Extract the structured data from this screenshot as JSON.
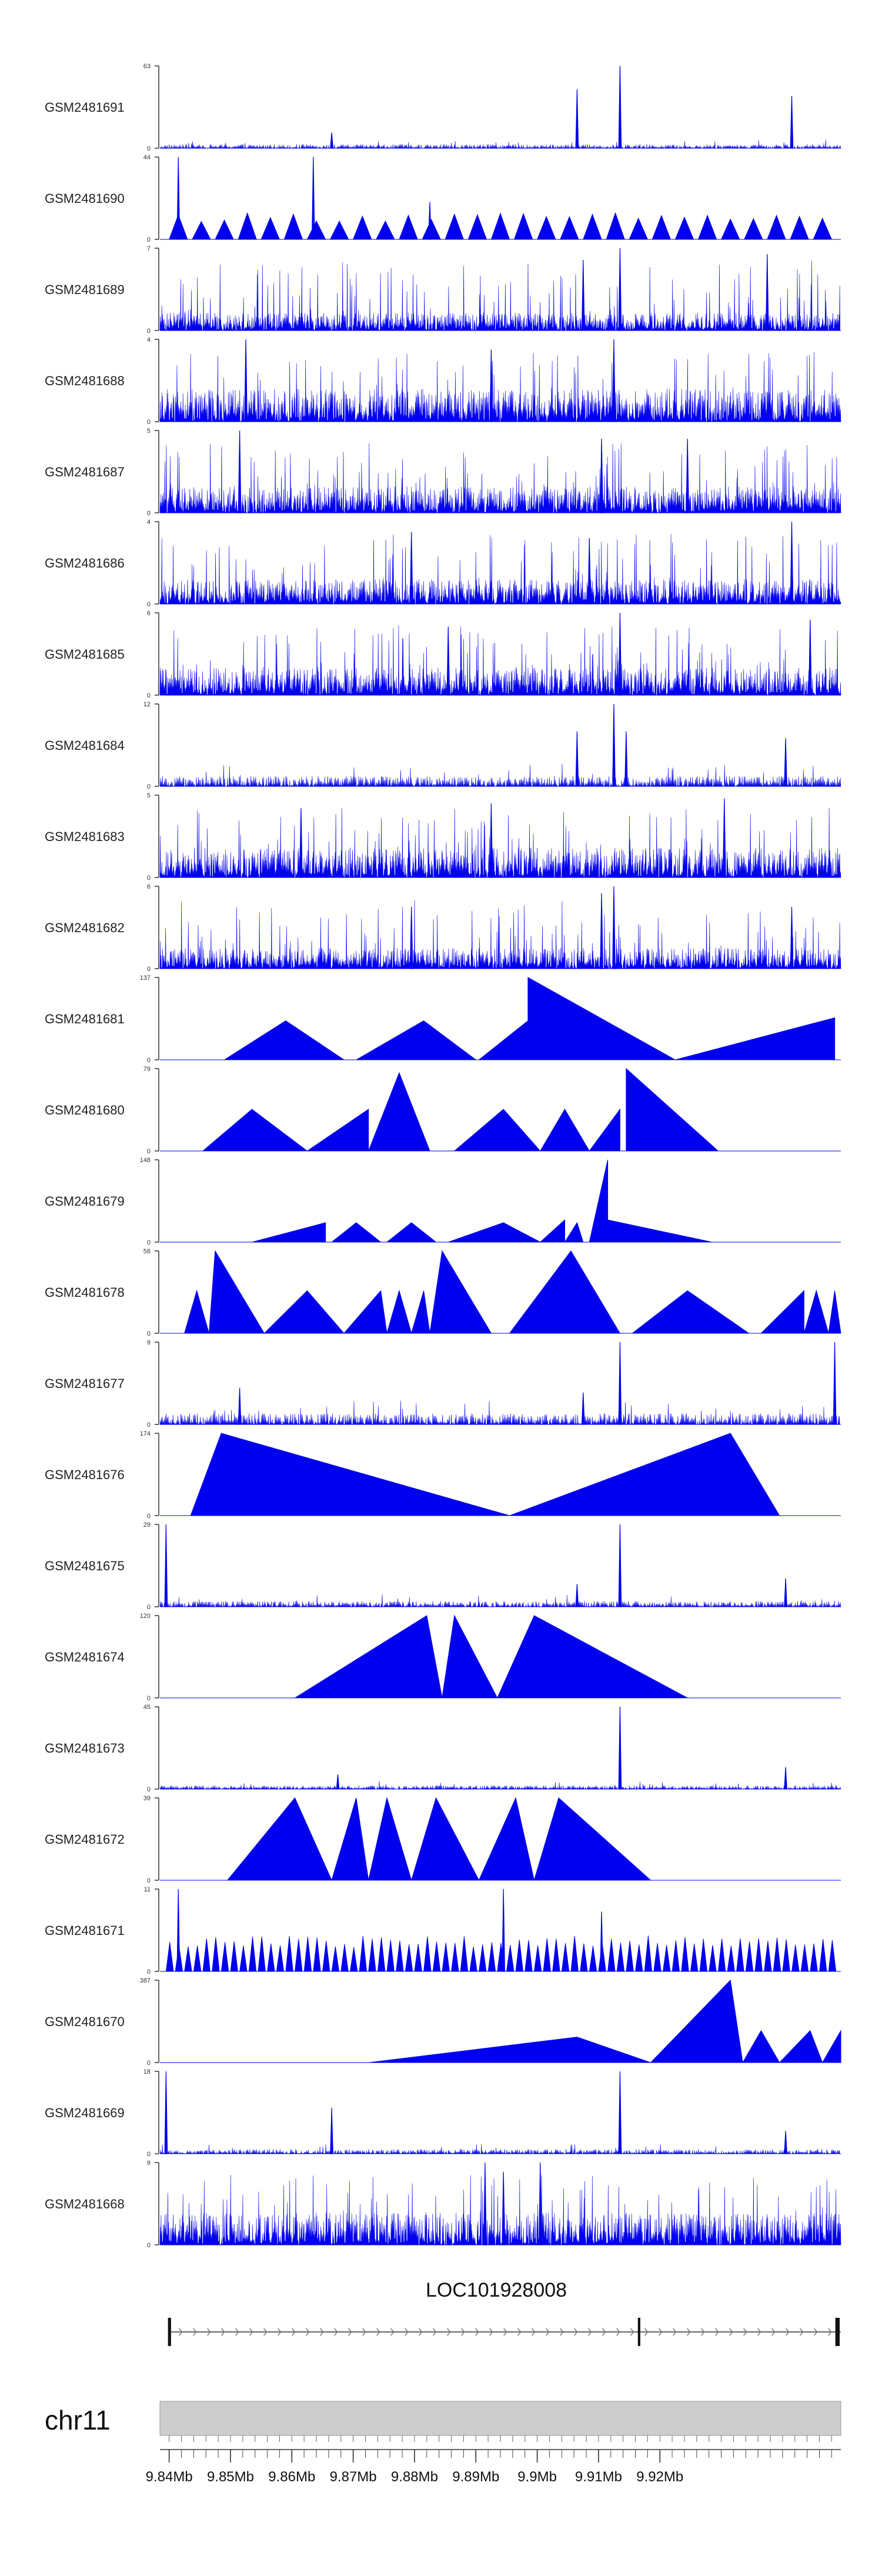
{
  "chart_data": {
    "type": "area",
    "description_free": true,
    "chromosome": "chr11",
    "gene": {
      "name": "LOC101928008",
      "start_mb": 9.84,
      "end_mb": 9.9495,
      "exons_mb": [
        [
          9.84,
          9.8405
        ],
        [
          9.9166,
          9.917
        ],
        [
          9.9488,
          9.9495
        ]
      ],
      "strand": "+"
    },
    "x_range_mb": [
      9.8385,
      9.9495
    ],
    "x_ticks": [
      {
        "value": 9.84,
        "label": "9.84Mb"
      },
      {
        "value": 9.85,
        "label": "9.85Mb"
      },
      {
        "value": 9.86,
        "label": "9.86Mb"
      },
      {
        "value": 9.87,
        "label": "9.87Mb"
      },
      {
        "value": 9.88,
        "label": "9.88Mb"
      },
      {
        "value": 9.89,
        "label": "9.89Mb"
      },
      {
        "value": 9.9,
        "label": "9.9Mb"
      },
      {
        "value": 9.91,
        "label": "9.91Mb"
      },
      {
        "value": 9.92,
        "label": "9.92Mb"
      }
    ],
    "fill_color": "#0000ee",
    "series": [
      {
        "name": "GSM2481691",
        "ymax": 63,
        "ymin": 0,
        "pattern": "sparse",
        "baseline": 3,
        "peaks": [
          [
            9.8665,
            12
          ],
          [
            9.9065,
            45
          ],
          [
            9.9135,
            63
          ],
          [
            9.9415,
            40
          ]
        ]
      },
      {
        "name": "GSM2481690",
        "ymax": 44,
        "ymin": 0,
        "pattern": "triangles",
        "span": [
          9.84,
          9.949
        ],
        "tri_width": 0.003,
        "tri_height": 12,
        "peaks": [
          [
            9.8415,
            44
          ],
          [
            9.8635,
            44
          ],
          [
            9.8825,
            20
          ]
        ]
      },
      {
        "name": "GSM2481689",
        "ymax": 7,
        "ymin": 0,
        "pattern": "dense",
        "baseline": 1.5,
        "peaks": [
          [
            9.9135,
            7
          ],
          [
            9.9075,
            6
          ],
          [
            9.9375,
            6.5
          ]
        ]
      },
      {
        "name": "GSM2481688",
        "ymax": 4,
        "ymin": 0,
        "pattern": "dense",
        "baseline": 1.6,
        "peaks": [
          [
            9.8525,
            4
          ],
          [
            9.9125,
            4
          ],
          [
            9.8925,
            3.5
          ]
        ]
      },
      {
        "name": "GSM2481687",
        "ymax": 5,
        "ymin": 0,
        "pattern": "dense",
        "baseline": 1.6,
        "peaks": [
          [
            9.8515,
            5
          ],
          [
            9.9105,
            4.5
          ],
          [
            9.9245,
            4.5
          ]
        ]
      },
      {
        "name": "GSM2481686",
        "ymax": 4,
        "ymin": 0,
        "pattern": "dense",
        "baseline": 1.2,
        "peaks": [
          [
            9.8795,
            3.5
          ],
          [
            9.9415,
            4
          ],
          [
            9.9085,
            3.2
          ]
        ]
      },
      {
        "name": "GSM2481685",
        "ymax": 6,
        "ymin": 0,
        "pattern": "dense",
        "baseline": 2.0,
        "peaks": [
          [
            9.9135,
            6
          ],
          [
            9.8855,
            5
          ],
          [
            9.9445,
            5.5
          ]
        ]
      },
      {
        "name": "GSM2481684",
        "ymax": 12,
        "ymin": 0,
        "pattern": "sparse",
        "baseline": 1.5,
        "peaks": [
          [
            9.9065,
            8
          ],
          [
            9.9125,
            12
          ],
          [
            9.9145,
            8
          ],
          [
            9.9405,
            7
          ]
        ]
      },
      {
        "name": "GSM2481683",
        "ymax": 5,
        "ymin": 0,
        "pattern": "dense",
        "baseline": 1.8,
        "peaks": [
          [
            9.9305,
            4.8
          ],
          [
            9.8925,
            4.5
          ],
          [
            9.8615,
            4.2
          ]
        ]
      },
      {
        "name": "GSM2481682",
        "ymax": 6,
        "ymin": 0,
        "pattern": "dense",
        "baseline": 1.5,
        "peaks": [
          [
            9.9105,
            5.5
          ],
          [
            9.9125,
            6
          ],
          [
            9.8795,
            4.5
          ],
          [
            9.9415,
            4.5
          ]
        ]
      },
      {
        "name": "GSM2481681",
        "ymax": 137,
        "ymin": 0,
        "pattern": "triangles_list",
        "triangles": [
          [
            9.849,
            9.859,
            9.8685,
            65
          ],
          [
            9.8705,
            9.8815,
            9.89,
            65
          ],
          [
            9.8905,
            9.8985,
            9.8985,
            65
          ],
          [
            9.8985,
            9.8985,
            9.9225,
            137
          ],
          [
            9.9225,
            9.9485,
            9.9485,
            70
          ]
        ]
      },
      {
        "name": "GSM2481680",
        "ymax": 79,
        "ymin": 0,
        "pattern": "triangles_list",
        "triangles": [
          [
            9.8455,
            9.8535,
            9.8625,
            40
          ],
          [
            9.8625,
            9.8725,
            9.8725,
            40
          ],
          [
            9.8725,
            9.8775,
            9.8825,
            75
          ],
          [
            9.8865,
            9.8945,
            9.9005,
            40
          ],
          [
            9.9005,
            9.9045,
            9.9085,
            40
          ],
          [
            9.9085,
            9.9135,
            9.9135,
            40
          ],
          [
            9.9145,
            9.9145,
            9.9295,
            79
          ]
        ]
      },
      {
        "name": "GSM2481679",
        "ymax": 148,
        "ymin": 0,
        "pattern": "triangles_list",
        "triangles": [
          [
            9.8535,
            9.8655,
            9.8655,
            35
          ],
          [
            9.8665,
            9.8705,
            9.8745,
            35
          ],
          [
            9.8755,
            9.8795,
            9.8835,
            35
          ],
          [
            9.8855,
            9.8945,
            9.9005,
            35
          ],
          [
            9.9005,
            9.9045,
            9.9045,
            40
          ],
          [
            9.9045,
            9.9065,
            9.9075,
            35
          ],
          [
            9.9085,
            9.9115,
            9.9115,
            148
          ],
          [
            9.9115,
            9.9115,
            9.9285,
            40
          ]
        ]
      },
      {
        "name": "GSM2481678",
        "ymax": 58,
        "ymin": 0,
        "pattern": "triangles_list",
        "triangles": [
          [
            9.8425,
            9.8445,
            9.8465,
            30
          ],
          [
            9.8465,
            9.8475,
            9.8555,
            58
          ],
          [
            9.8555,
            9.8625,
            9.8685,
            30
          ],
          [
            9.8685,
            9.8745,
            9.8755,
            30
          ],
          [
            9.8755,
            9.8775,
            9.8795,
            30
          ],
          [
            9.8795,
            9.8815,
            9.8825,
            30
          ],
          [
            9.8825,
            9.8845,
            9.8925,
            58
          ],
          [
            9.8955,
            9.9055,
            9.9135,
            58
          ],
          [
            9.9155,
            9.9245,
            9.9345,
            30
          ],
          [
            9.9365,
            9.9435,
            9.9435,
            30
          ],
          [
            9.9435,
            9.9455,
            9.9475,
            30
          ],
          [
            9.9475,
            9.9485,
            9.9495,
            30
          ]
        ]
      },
      {
        "name": "GSM2481677",
        "ymax": 9,
        "ymin": 0,
        "pattern": "sparse",
        "baseline": 1.2,
        "peaks": [
          [
            9.9135,
            9
          ],
          [
            9.9485,
            9
          ],
          [
            9.8515,
            4
          ],
          [
            9.9075,
            3.5
          ]
        ]
      },
      {
        "name": "GSM2481676",
        "ymax": 174,
        "ymin": 0,
        "pattern": "triangles_list",
        "triangles": [
          [
            9.8435,
            9.8485,
            9.8955,
            174
          ],
          [
            9.8955,
            9.9315,
            9.9395,
            174
          ]
        ]
      },
      {
        "name": "GSM2481675",
        "ymax": 29,
        "ymin": 0,
        "pattern": "sparse",
        "baseline": 2,
        "peaks": [
          [
            9.8395,
            29
          ],
          [
            9.9135,
            29
          ],
          [
            9.9065,
            8
          ],
          [
            9.9405,
            10
          ]
        ]
      },
      {
        "name": "GSM2481674",
        "ymax": 120,
        "ymin": 0,
        "pattern": "triangles_list",
        "triangles": [
          [
            9.8605,
            9.882,
            9.8845,
            120
          ],
          [
            9.8845,
            9.8865,
            9.8935,
            120
          ],
          [
            9.8935,
            9.8995,
            9.9245,
            120
          ]
        ]
      },
      {
        "name": "GSM2481673",
        "ymax": 45,
        "ymin": 0,
        "pattern": "sparse",
        "baseline": 2,
        "peaks": [
          [
            9.9135,
            45
          ],
          [
            9.9405,
            12
          ],
          [
            9.8675,
            8
          ]
        ]
      },
      {
        "name": "GSM2481672",
        "ymax": 39,
        "ymin": 0,
        "pattern": "triangles_list",
        "triangles": [
          [
            9.8495,
            9.8605,
            9.8665,
            39
          ],
          [
            9.8665,
            9.8705,
            9.8725,
            39
          ],
          [
            9.8725,
            9.8755,
            9.8795,
            39
          ],
          [
            9.8795,
            9.8835,
            9.8905,
            39
          ],
          [
            9.8905,
            9.8965,
            9.8995,
            39
          ],
          [
            9.8995,
            9.9035,
            9.9185,
            39
          ]
        ]
      },
      {
        "name": "GSM2481671",
        "ymax": 11,
        "ymin": 0,
        "pattern": "triangles",
        "span": [
          9.8395,
          9.949
        ],
        "tri_width": 0.0012,
        "tri_height": 4,
        "peaks": [
          [
            9.8415,
            11
          ],
          [
            9.8945,
            11
          ],
          [
            9.9105,
            8
          ]
        ]
      },
      {
        "name": "GSM2481670",
        "ymax": 387,
        "ymin": 0,
        "pattern": "triangles_list",
        "triangles": [
          [
            9.8725,
            9.9065,
            9.9185,
            120
          ],
          [
            9.9185,
            9.9315,
            9.9335,
            387
          ],
          [
            9.9335,
            9.9365,
            9.9395,
            150
          ],
          [
            9.9395,
            9.9445,
            9.9465,
            150
          ],
          [
            9.9465,
            9.9495,
            9.9495,
            150
          ]
        ]
      },
      {
        "name": "GSM2481669",
        "ymax": 18,
        "ymin": 0,
        "pattern": "sparse",
        "baseline": 1,
        "peaks": [
          [
            9.8395,
            18
          ],
          [
            9.9135,
            18
          ],
          [
            9.8665,
            10
          ],
          [
            9.9405,
            5
          ]
        ]
      },
      {
        "name": "GSM2481668",
        "ymax": 9,
        "ymin": 0,
        "pattern": "dense",
        "baseline": 3.5,
        "peaks": [
          [
            9.8915,
            9
          ],
          [
            9.8945,
            8
          ],
          [
            9.9005,
            9
          ]
        ]
      }
    ]
  }
}
